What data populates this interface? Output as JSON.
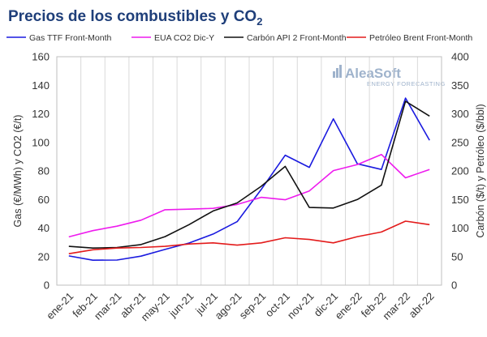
{
  "chart_data": {
    "type": "line",
    "title": "Precios de los combustibles y CO",
    "title_subscript": "2",
    "ylabel_left": "Gas (€/MWh) y CO2 (€/t)",
    "ylabel_right": "Carbón ($/t) y Petróleo ($/bbl)",
    "xlabel": "",
    "ylim_left": [
      0,
      160
    ],
    "ylim_right": [
      0,
      400
    ],
    "yticks_left": [
      "0",
      "20",
      "40",
      "60",
      "80",
      "100",
      "120",
      "140",
      "160"
    ],
    "yticks_right": [
      "0",
      "50",
      "100",
      "150",
      "200",
      "250",
      "300",
      "350",
      "400"
    ],
    "grid": "vertical",
    "legend_position": "top",
    "categories": [
      "ene-21",
      "feb-21",
      "mar-21",
      "abr-21",
      "may-21",
      "jun-21",
      "jul-21",
      "ago-21",
      "sep-21",
      "oct-21",
      "nov-21",
      "dic-21",
      "ene-22",
      "feb-22",
      "mar-22",
      "abr-22"
    ],
    "series": [
      {
        "name": "Gas TTF Front-Month",
        "axis": "left",
        "color": "#1a1adf",
        "values": [
          20.5,
          17.5,
          17.6,
          20.3,
          25.0,
          29.5,
          35.8,
          44.5,
          67.0,
          91.0,
          82.5,
          116.5,
          85.0,
          81.0,
          131.0,
          101.5
        ]
      },
      {
        "name": "EUA CO2 Dic-Y",
        "axis": "left",
        "color": "#ee1bee",
        "values": [
          33.8,
          38.2,
          41.3,
          45.5,
          52.8,
          53.2,
          53.8,
          56.5,
          61.5,
          59.8,
          66.0,
          80.2,
          84.5,
          91.5,
          75.2,
          81.0
        ]
      },
      {
        "name": "Carbón API 2 Front-Month",
        "axis": "right",
        "color": "#111111",
        "values": [
          68,
          65,
          66,
          71,
          85,
          106,
          130,
          144,
          173,
          208,
          136,
          135,
          150,
          175,
          322,
          296
        ]
      },
      {
        "name": "Petróleo Brent Front-Month",
        "axis": "right",
        "color": "#e31b1b",
        "values": [
          55,
          62,
          65,
          66,
          68,
          72,
          74,
          70,
          74,
          83,
          80,
          74,
          85,
          93,
          112,
          106
        ]
      }
    ]
  },
  "watermark": {
    "name": "AleaSoft",
    "tagline": "ENERGY FORECASTING"
  }
}
